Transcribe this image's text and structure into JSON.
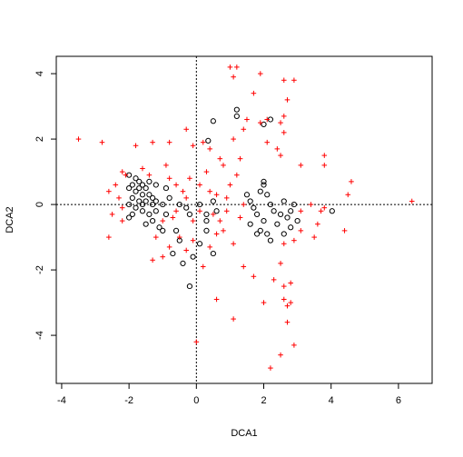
{
  "chart_data": {
    "type": "scatter",
    "x_label": "DCA1",
    "y_label": "DCA2",
    "xlim": [
      -4.16,
      7.0
    ],
    "ylim": [
      -5.47,
      4.53
    ],
    "xticks": [
      -4,
      -2,
      0,
      2,
      4,
      6
    ],
    "yticks": [
      -4,
      -2,
      0,
      2,
      4
    ],
    "zero_lines": true,
    "series": [
      {
        "marker": "circle",
        "color": "#000000",
        "x": [
          -2.0,
          -1.8,
          -1.9,
          -2.0,
          -1.7,
          -1.6,
          -1.5,
          -1.8,
          -1.6,
          -1.4,
          -1.3,
          -1.2,
          -1.5,
          -1.7,
          -1.9,
          -2.0,
          -1.8,
          -1.6,
          -1.4,
          -1.2,
          -1.0,
          -0.9,
          -1.3,
          -1.5,
          -1.1,
          -1.7,
          -1.4,
          -1.2,
          -0.9,
          -0.8,
          -1.9,
          -2.0,
          -1.6,
          -1.3,
          -0.5,
          -0.3,
          0.1,
          0.3,
          0.5,
          0.6,
          0.3,
          -0.2,
          -0.6,
          -0.5,
          -0.4,
          -0.1,
          0.1,
          0.5,
          -0.7,
          -1.0,
          -0.2,
          0.3,
          0.5,
          1.2,
          1.2,
          2.0,
          2.2,
          0.35,
          1.5,
          1.6,
          1.7,
          1.8,
          1.9,
          2.0,
          2.1,
          2.2,
          2.3,
          2.0,
          1.9,
          2.1,
          2.2,
          2.4,
          2.5,
          2.6,
          2.7,
          2.8,
          2.9,
          3.0,
          2.8,
          1.6,
          1.8,
          2.6,
          4.03,
          2.0
        ],
        "y": [
          0.9,
          0.8,
          0.6,
          0.5,
          0.7,
          0.6,
          0.5,
          0.4,
          0.3,
          0.3,
          0.2,
          0.1,
          0.1,
          0.1,
          0.2,
          0.0,
          -0.1,
          -0.2,
          -0.3,
          -0.2,
          0.0,
          -0.3,
          -0.5,
          -0.6,
          -0.7,
          0.5,
          0.7,
          0.6,
          0.5,
          0.2,
          -0.3,
          -0.4,
          0.0,
          0.0,
          0.0,
          -0.1,
          0.0,
          -0.3,
          0.1,
          -0.2,
          -0.5,
          -0.3,
          -0.8,
          -1.1,
          -1.8,
          -1.6,
          -1.2,
          -1.5,
          -1.5,
          -0.8,
          -2.5,
          -0.8,
          2.55,
          2.9,
          2.7,
          2.45,
          2.6,
          1.95,
          0.3,
          0.1,
          -0.1,
          -0.3,
          0.4,
          0.6,
          0.3,
          0.0,
          -0.2,
          -0.5,
          -0.8,
          -0.9,
          -1.1,
          -0.6,
          -0.3,
          0.1,
          -0.4,
          -0.2,
          0.0,
          -0.5,
          -0.7,
          -0.6,
          -0.9,
          -0.9,
          -0.2,
          0.7
        ]
      },
      {
        "marker": "plus",
        "color": "#ff0000",
        "x": [
          -3.5,
          -2.8,
          -1.8,
          -1.3,
          -0.8,
          -0.3,
          -0.1,
          0.2,
          0.4,
          0.7,
          0.8,
          1.3,
          2.5,
          3.1,
          3.8,
          3.8,
          1.0,
          1.2,
          1.1,
          1.9,
          2.6,
          2.9,
          1.7,
          2.7,
          1.5,
          1.9,
          2.1,
          2.6,
          2.5,
          2.6,
          2.1,
          2.4,
          1.4,
          1.1,
          -2.6,
          -2.4,
          -2.3,
          -2.2,
          -2.5,
          -2.6,
          -2.2,
          -2.1,
          -2.2,
          -1.4,
          -0.8,
          -0.6,
          -0.4,
          -0.3,
          -0.6,
          -0.7,
          -1.0,
          -1.2,
          -1.3,
          -1.0,
          -0.8,
          -0.5,
          -0.3,
          -0.1,
          0.2,
          0.4,
          0.6,
          0.8,
          0.7,
          0.5,
          0.4,
          0.6,
          0.9,
          1.0,
          1.2,
          1.4,
          1.3,
          0.0,
          0.6,
          1.1,
          1.1,
          1.4,
          1.7,
          2.0,
          2.3,
          2.5,
          2.6,
          2.7,
          2.8,
          2.6,
          2.7,
          2.9,
          2.8,
          2.2,
          2.5,
          2.6,
          2.9,
          3.1,
          3.5,
          3.6,
          3.8,
          4.5,
          4.6,
          4.4,
          6.4,
          3.1,
          3.4,
          3.7,
          0.1,
          -0.1,
          -0.2,
          0.3,
          -1.6,
          -0.9,
          0.1,
          0.9
        ],
        "y": [
          2.0,
          1.9,
          1.8,
          1.9,
          1.9,
          2.3,
          1.8,
          1.9,
          1.7,
          1.4,
          1.2,
          1.4,
          1.5,
          1.2,
          1.5,
          1.2,
          4.2,
          4.2,
          3.9,
          4.0,
          3.8,
          3.8,
          3.4,
          3.2,
          2.6,
          2.5,
          2.6,
          2.7,
          2.5,
          2.2,
          1.9,
          1.7,
          2.3,
          2.0,
          0.4,
          0.6,
          0.2,
          -0.1,
          -0.3,
          -1.0,
          -0.5,
          0.9,
          1.0,
          0.9,
          0.8,
          0.6,
          0.4,
          0.2,
          -0.2,
          -0.4,
          -0.5,
          -1.0,
          -1.7,
          -1.6,
          -1.3,
          -1.0,
          -1.4,
          -1.1,
          -1.9,
          -1.3,
          -0.9,
          -0.8,
          -0.5,
          -0.3,
          0.4,
          0.3,
          0.2,
          0.6,
          0.9,
          0.0,
          -0.4,
          -4.2,
          -2.9,
          -3.5,
          -1.2,
          -1.9,
          -2.2,
          -3.0,
          -2.3,
          -1.8,
          -2.5,
          -3.1,
          -2.4,
          -2.9,
          -3.6,
          -4.3,
          -3.0,
          -5.0,
          -4.6,
          -1.2,
          -1.1,
          -0.8,
          -1.0,
          -0.6,
          -0.1,
          0.3,
          0.7,
          -0.8,
          0.1,
          -0.2,
          0.0,
          -0.2,
          0.6,
          -0.5,
          0.8,
          1.0,
          1.1,
          1.2,
          -0.2,
          -0.2
        ]
      }
    ]
  }
}
